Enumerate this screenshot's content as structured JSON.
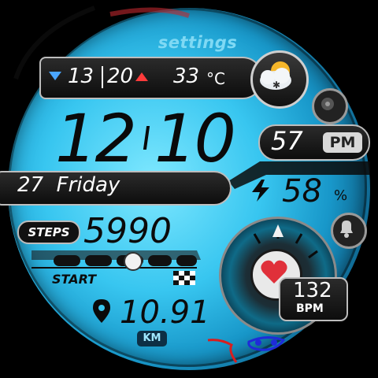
{
  "settings_label": "settings",
  "weather": {
    "low": "13",
    "high": "20",
    "temperature": "33",
    "unit": "°C",
    "icon": "partly-cloudy-snow-icon"
  },
  "time": {
    "hours": "12",
    "minutes": "10",
    "seconds": "57",
    "ampm": "PM"
  },
  "date": {
    "text": "27  Friday"
  },
  "battery": {
    "value": "58",
    "unit": "%"
  },
  "steps": {
    "label": "STEPS",
    "value": "5990",
    "start_label": "START",
    "goal_progress": 0.56
  },
  "distance": {
    "value": "10.91",
    "unit": "KM"
  },
  "heart": {
    "value": "132",
    "unit": "BPM"
  },
  "colors": {
    "accent": "#38c6f0",
    "heart": "#e0303a",
    "weather_low": "#4aa6ff",
    "weather_high": "#ff3b3b"
  }
}
